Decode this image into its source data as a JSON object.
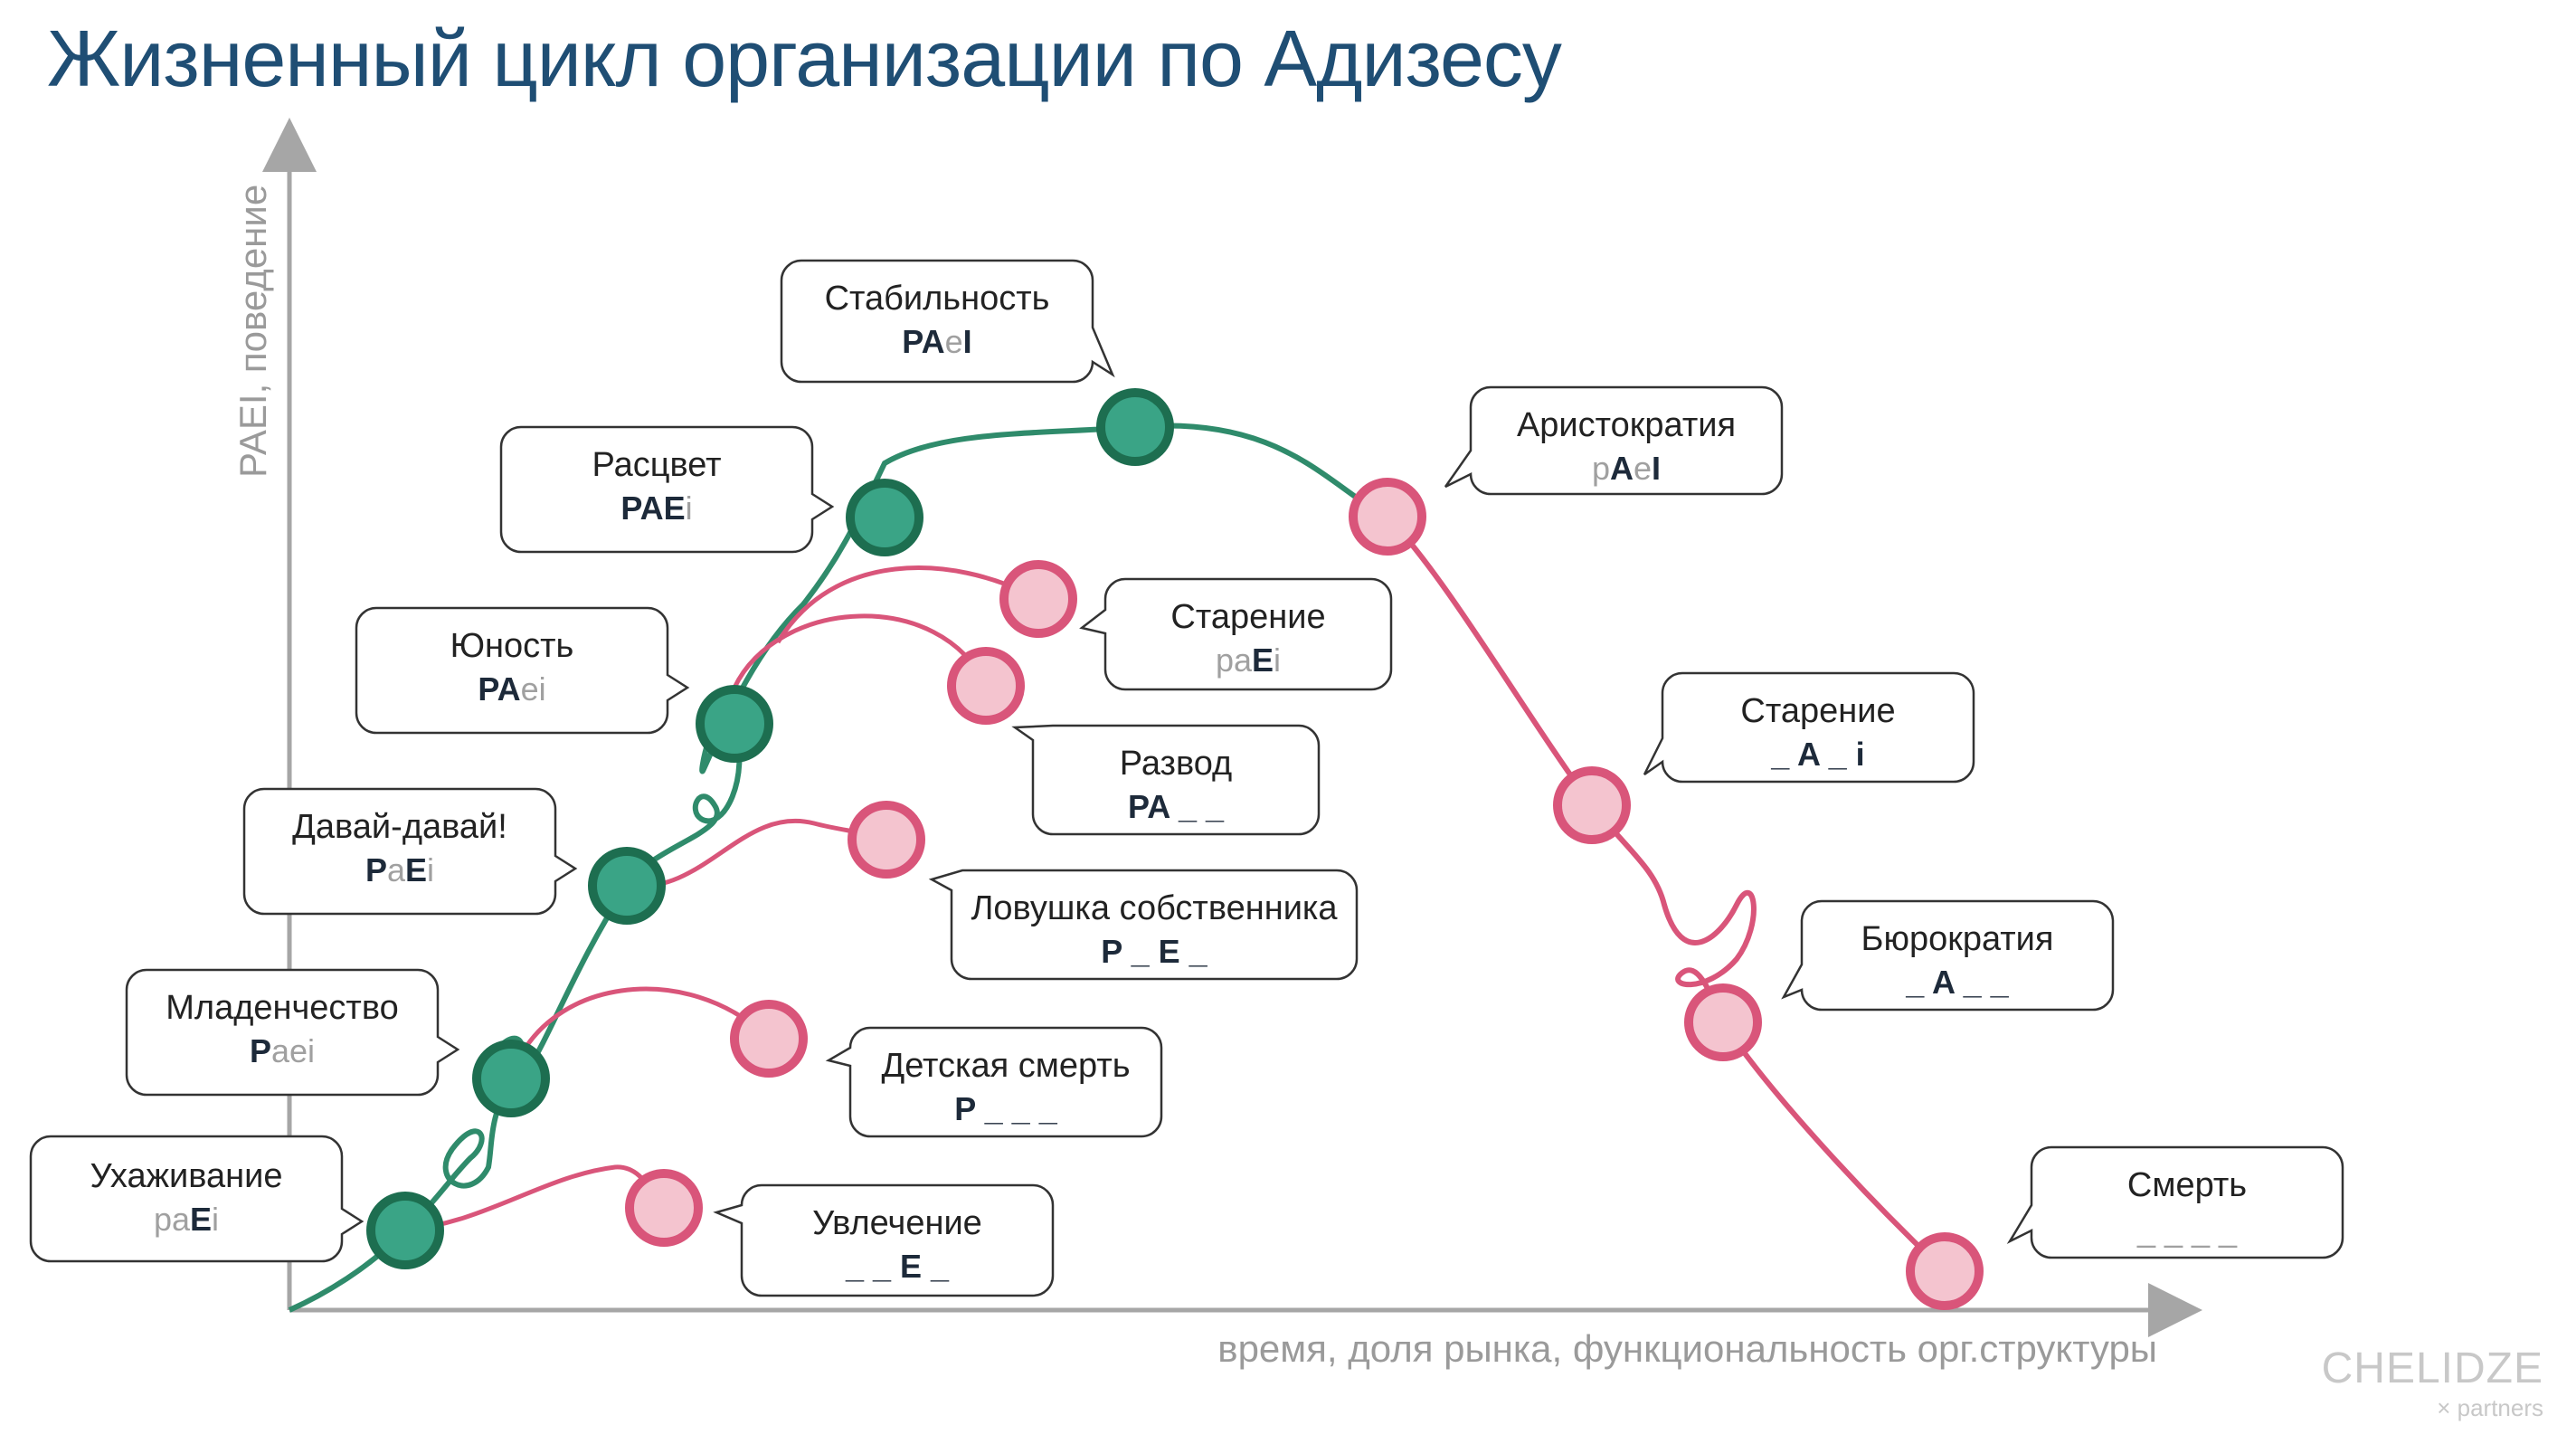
{
  "title": "Жизненный цикл организации по Адизесу",
  "axes": {
    "y_label": "PAEI, поведение",
    "x_label": "время, доля рынка, функциональность орг.структуры"
  },
  "colors": {
    "title": "#1f4e74",
    "growth_curve": "#2f8b6b",
    "growth_node_fill": "#3aa486",
    "growth_node_stroke": "#1d6e50",
    "decline_curve": "#d9557a",
    "decline_node_fill": "#f4c4cf",
    "decline_node_stroke": "#d9557a",
    "code_active": "#1d2a3a",
    "code_inactive": "#a0a0a0",
    "axis": "#a6a6a6"
  },
  "stages": [
    {
      "name": "Ухаживание",
      "code": [
        [
          "pa",
          "off"
        ],
        [
          "E",
          "on"
        ],
        [
          "i",
          "off"
        ]
      ]
    },
    {
      "name": "Младенчество",
      "code": [
        [
          "P",
          "on"
        ],
        [
          "aei",
          "off"
        ]
      ]
    },
    {
      "name": "Давай-давай!",
      "code": [
        [
          "P",
          "on"
        ],
        [
          "a",
          "off"
        ],
        [
          "E",
          "on"
        ],
        [
          "i",
          "off"
        ]
      ]
    },
    {
      "name": "Юность",
      "code": [
        [
          "PA",
          "on"
        ],
        [
          "ei",
          "off"
        ]
      ]
    },
    {
      "name": "Расцвет",
      "code": [
        [
          "PAE",
          "on"
        ],
        [
          "i",
          "off"
        ]
      ]
    },
    {
      "name": "Стабильность",
      "code": [
        [
          "PA",
          "on"
        ],
        [
          "e",
          "off"
        ],
        [
          "I",
          "on"
        ]
      ]
    },
    {
      "name": "Аристократия",
      "code": [
        [
          "p",
          "off"
        ],
        [
          "A",
          "on"
        ],
        [
          "e",
          "off"
        ],
        [
          "I",
          "on"
        ]
      ]
    },
    {
      "name": "Старение",
      "code": [
        [
          "_ A _ i",
          "on"
        ]
      ]
    },
    {
      "name": "Бюрократия",
      "code": [
        [
          "_ A _ _",
          "on"
        ]
      ]
    },
    {
      "name": "Смерть",
      "code": [
        [
          "_ _ _ _",
          "off"
        ]
      ]
    }
  ],
  "failures": [
    {
      "name": "Увлечение",
      "code": [
        [
          "_ _ E _",
          "on"
        ]
      ]
    },
    {
      "name": "Детская смерть",
      "code": [
        [
          "P _ _ _",
          "on"
        ]
      ]
    },
    {
      "name": "Ловушка собственника",
      "code": [
        [
          "P _ E _",
          "on"
        ]
      ]
    },
    {
      "name": "Развод",
      "code": [
        [
          "PA _ _",
          "on"
        ]
      ]
    },
    {
      "name": "Старение",
      "code": [
        [
          "pa",
          "off"
        ],
        [
          "E",
          "on"
        ],
        [
          "i",
          "off"
        ]
      ]
    }
  ],
  "logo": {
    "main": "CHELIDZE",
    "sub": "× partners"
  }
}
